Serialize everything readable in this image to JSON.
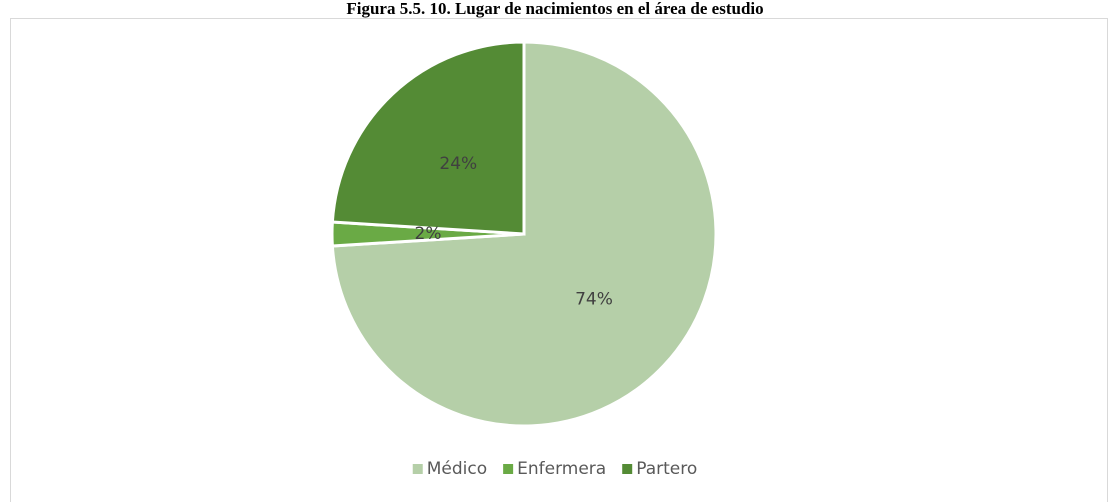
{
  "chart_data": {
    "type": "pie",
    "title": "Figura 5.5. 10. Lugar de nacimientos en el área de estudio",
    "categories": [
      "Médico",
      "Enfermera",
      "Partero"
    ],
    "values": [
      74,
      2,
      24
    ],
    "value_labels": [
      "74%",
      "2%",
      "24%"
    ],
    "colors": [
      "#b5cfa8",
      "#6aaa45",
      "#548b35"
    ],
    "legend": "bottom"
  }
}
